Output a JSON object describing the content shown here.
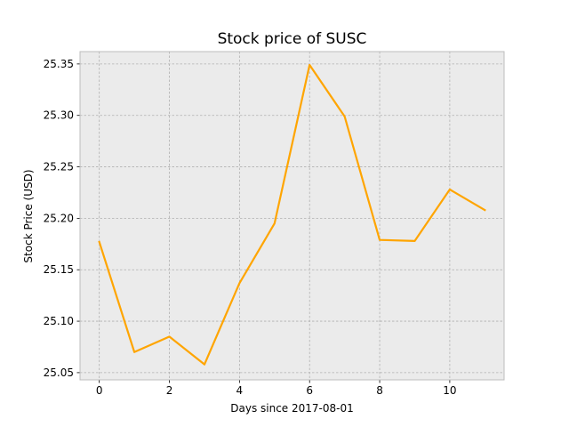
{
  "chart_data": {
    "type": "line",
    "title": "Stock price of SUSC",
    "xlabel": "Days since 2017-08-01",
    "ylabel": "Stock Price (USD)",
    "x": [
      0,
      1,
      2,
      3,
      4,
      5,
      6,
      7,
      8,
      9,
      10,
      11
    ],
    "series": [
      {
        "values": [
          25.177,
          25.07,
          25.085,
          25.058,
          25.137,
          25.195,
          25.349,
          25.299,
          25.179,
          25.178,
          25.228,
          25.208
        ],
        "color": "#ffa500"
      }
    ],
    "xlim": [
      -0.55,
      11.55
    ],
    "ylim": [
      25.043,
      25.362
    ],
    "x_ticks": [
      0,
      2,
      4,
      6,
      8,
      10
    ],
    "x_tick_labels": [
      "0",
      "2",
      "4",
      "6",
      "8",
      "10"
    ],
    "y_ticks": [
      25.05,
      25.1,
      25.15,
      25.2,
      25.25,
      25.3,
      25.35
    ],
    "y_tick_labels": [
      "25.05",
      "25.10",
      "25.15",
      "25.20",
      "25.25",
      "25.30",
      "25.35"
    ],
    "grid": true,
    "legend": "none",
    "colors": {
      "plot_background": "#ebebeb",
      "grid": "#b0b0b0",
      "axes_edge": "#bcbcbc",
      "line": "#ffa500"
    }
  }
}
